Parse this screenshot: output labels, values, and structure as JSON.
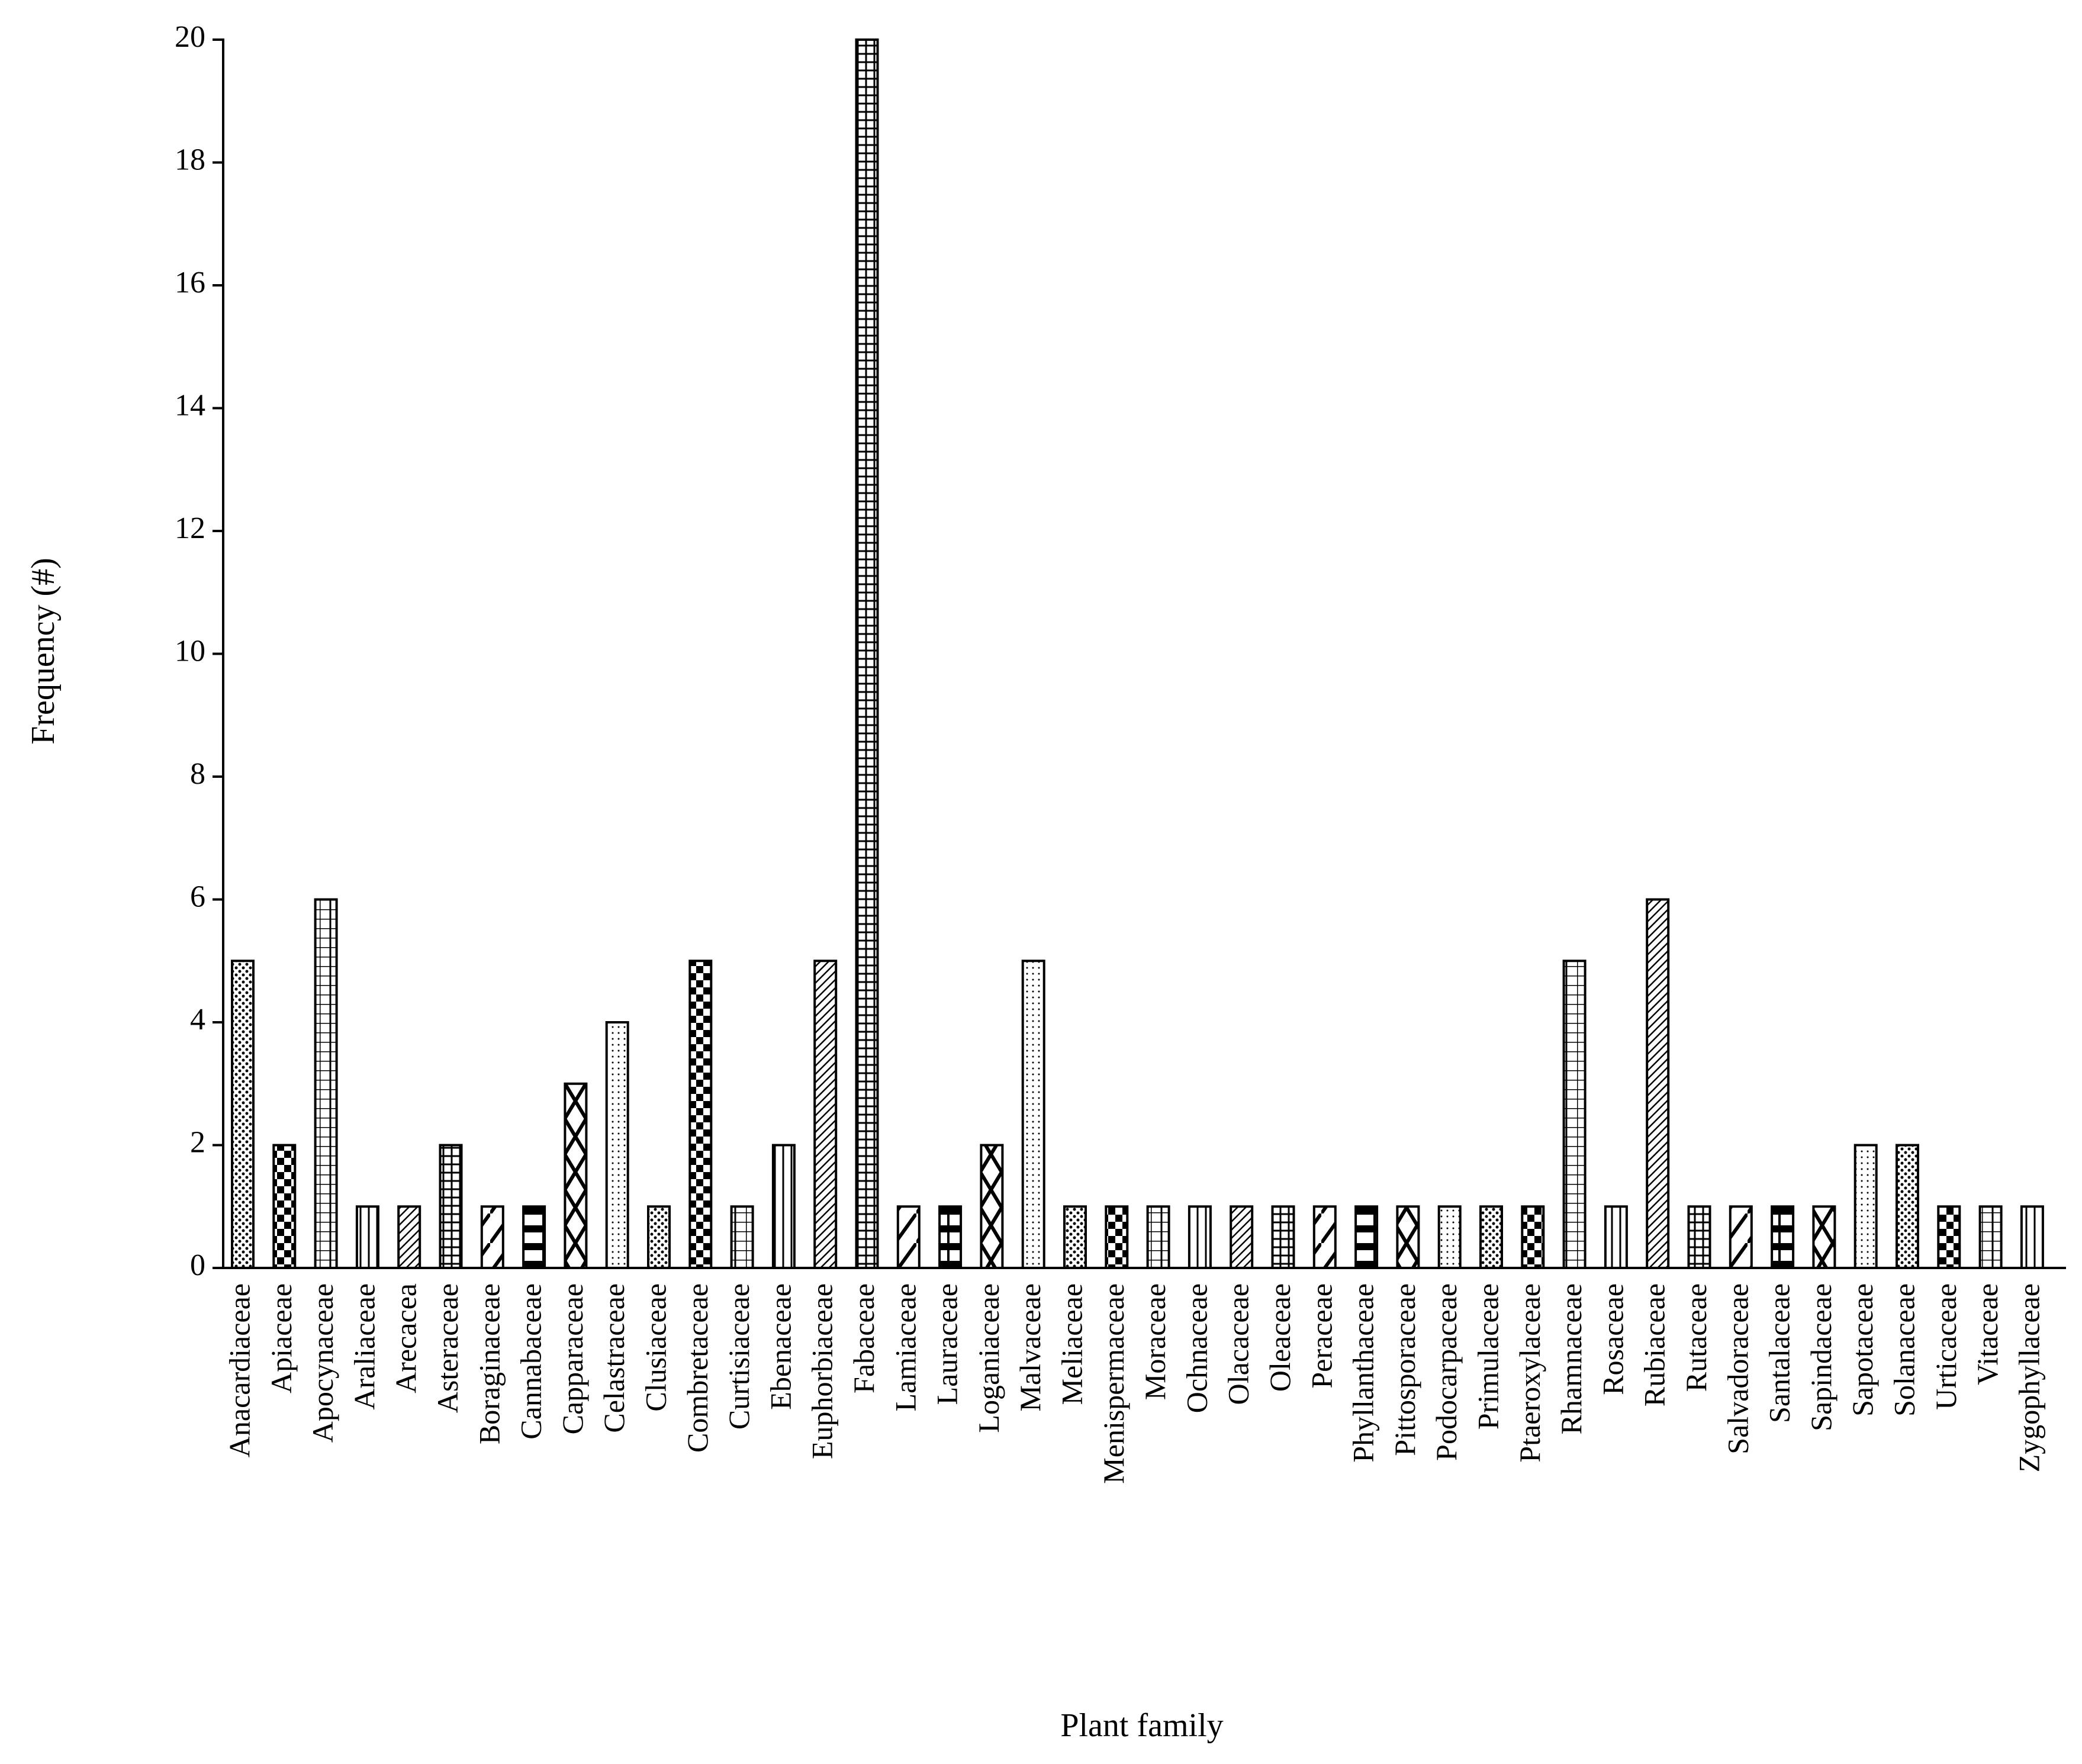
{
  "chart_data": {
    "type": "bar",
    "x_label": "Plant family",
    "y_label": "Frequency (#)",
    "categories": [
      "Anacardiaceae",
      "Apiaceae",
      "Apocynaceae",
      "Araliaceae",
      "Arecacea",
      "Asteraceae",
      "Boraginaceae",
      "Cannabaceae",
      "Capparaceae",
      "Celastraceae",
      "Clusiaceae",
      "Combretaceae",
      "Curtisiaceae",
      "Ebenaceae",
      "Euphorbiaceae",
      "Fabaceae",
      "Lamiaceae",
      "Lauraceae",
      "Loganiaceae",
      "Malvaceae",
      "Meliaceae",
      "Menispermaceae",
      "Moraceae",
      "Ochnaceae",
      "Olacaceae",
      "Oleaceae",
      "Peraceae",
      "Phyllanthaceae",
      "Pittosporaceae",
      "Podocarpaceae",
      "Primulaceae",
      "Ptaeroxylaceae",
      "Rhamnaceae",
      "Rosaceae",
      "Rubiaceae",
      "Rutaceae",
      "Salvadoraceae",
      "Santalaceae",
      "Sapindaceae",
      "Sapotaceae",
      "Solanaceae",
      "Urticaceae",
      "Vitaceae",
      "Zygophyllaceae"
    ],
    "values": [
      5,
      2,
      6,
      1,
      1,
      2,
      1,
      1,
      3,
      4,
      1,
      5,
      1,
      2,
      5,
      20,
      1,
      1,
      2,
      5,
      1,
      1,
      1,
      1,
      1,
      1,
      1,
      1,
      1,
      1,
      1,
      1,
      5,
      1,
      6,
      1,
      1,
      1,
      1,
      2,
      2,
      1,
      1,
      1
    ],
    "color": "#000000",
    "ylim": [
      0,
      20
    ],
    "yticks": [
      0,
      2,
      4,
      6,
      8,
      10,
      12,
      14,
      16,
      18,
      20
    ],
    "grid": false
  }
}
